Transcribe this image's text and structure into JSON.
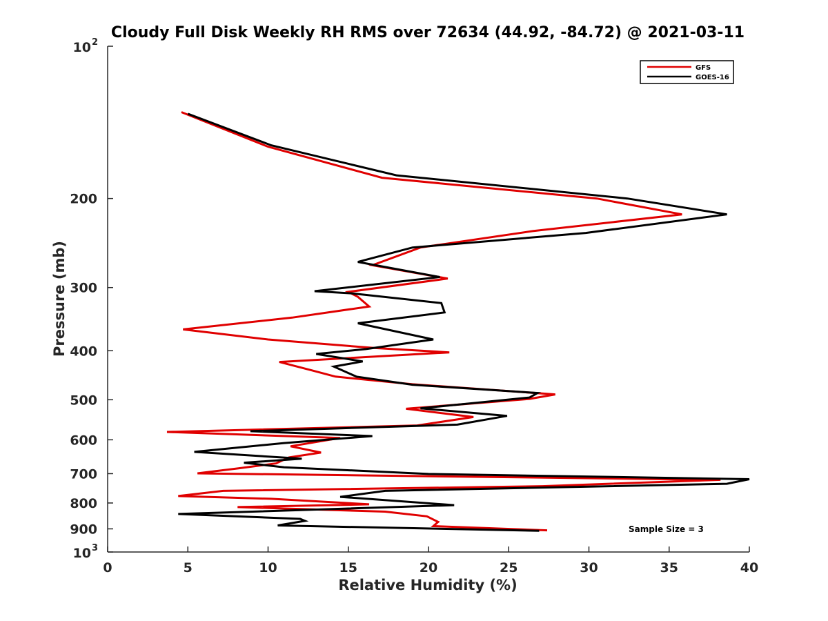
{
  "chart_data": {
    "type": "line",
    "title": "Cloudy Full Disk Weekly RH RMS over 72634 (44.92, -84.72) @ 2021-03-11",
    "xlabel": "Relative Humidity (%)",
    "ylabel": "Pressure (mb)",
    "xlim": [
      0,
      40
    ],
    "ylim": [
      100,
      1000
    ],
    "y_scale": "log",
    "y_reversed": true,
    "x_ticks": [
      "0",
      "5",
      "10",
      "15",
      "20",
      "25",
      "30",
      "35",
      "40"
    ],
    "y_ticks": [
      {
        "value": 100,
        "base": "10",
        "exp": "2",
        "label": ""
      },
      {
        "value": 200,
        "label": "200"
      },
      {
        "value": 300,
        "label": "300"
      },
      {
        "value": 400,
        "label": "400"
      },
      {
        "value": 500,
        "label": "500"
      },
      {
        "value": 600,
        "label": "600"
      },
      {
        "value": 700,
        "label": "700"
      },
      {
        "value": 800,
        "label": "800"
      },
      {
        "value": 900,
        "label": "900"
      },
      {
        "value": 1000,
        "base": "10",
        "exp": "3",
        "label": ""
      }
    ],
    "legend_position": "top-right",
    "grid": false,
    "annotation": "Sample Size = 3",
    "series": [
      {
        "name": "GFS",
        "color": "#e00000",
        "points": [
          [
            4.6,
            135
          ],
          [
            10.0,
            158
          ],
          [
            17.1,
            182
          ],
          [
            30.5,
            200
          ],
          [
            35.8,
            215
          ],
          [
            26.5,
            232
          ],
          [
            19.5,
            250
          ],
          [
            16.5,
            271
          ],
          [
            21.2,
            288
          ],
          [
            15.0,
            306
          ],
          [
            15.6,
            313
          ],
          [
            16.3,
            327
          ],
          [
            11.5,
            344
          ],
          [
            4.7,
            363
          ],
          [
            10.0,
            380
          ],
          [
            16.6,
            395
          ],
          [
            21.3,
            403
          ],
          [
            10.7,
            421
          ],
          [
            12.8,
            438
          ],
          [
            14.2,
            450
          ],
          [
            19.0,
            466
          ],
          [
            27.9,
            488
          ],
          [
            26.3,
            498
          ],
          [
            18.6,
            521
          ],
          [
            22.8,
            541
          ],
          [
            19.3,
            562
          ],
          [
            3.7,
            579
          ],
          [
            14.5,
            595
          ],
          [
            11.4,
            618
          ],
          [
            13.3,
            636
          ],
          [
            11.3,
            650
          ],
          [
            10.5,
            668
          ],
          [
            8.2,
            683
          ],
          [
            5.6,
            699
          ],
          [
            38.2,
            720
          ],
          [
            27.1,
            741
          ],
          [
            7.2,
            757
          ],
          [
            4.4,
            775
          ],
          [
            10.2,
            785
          ],
          [
            16.3,
            805
          ],
          [
            8.1,
            815
          ],
          [
            17.3,
            832
          ],
          [
            19.9,
            850
          ],
          [
            20.6,
            872
          ],
          [
            20.3,
            889
          ],
          [
            27.4,
            906
          ]
        ]
      },
      {
        "name": "GOES-16",
        "color": "#000000",
        "points": [
          [
            5.0,
            136
          ],
          [
            10.2,
            157
          ],
          [
            18.0,
            180
          ],
          [
            32.4,
            200
          ],
          [
            38.6,
            215
          ],
          [
            29.8,
            234
          ],
          [
            19.0,
            250
          ],
          [
            15.6,
            267
          ],
          [
            20.7,
            286
          ],
          [
            12.9,
            305
          ],
          [
            15.2,
            308
          ],
          [
            20.8,
            322
          ],
          [
            21.0,
            336
          ],
          [
            15.6,
            353
          ],
          [
            20.3,
            380
          ],
          [
            16.1,
            397
          ],
          [
            13.0,
            406
          ],
          [
            15.9,
            420
          ],
          [
            14.1,
            430
          ],
          [
            15.5,
            450
          ],
          [
            19.0,
            467
          ],
          [
            26.8,
            485
          ],
          [
            26.3,
            495
          ],
          [
            19.5,
            520
          ],
          [
            24.9,
            538
          ],
          [
            21.8,
            560
          ],
          [
            8.9,
            577
          ],
          [
            16.5,
            590
          ],
          [
            11.0,
            609
          ],
          [
            5.4,
            634
          ],
          [
            12.1,
            654
          ],
          [
            8.5,
            666
          ],
          [
            11.0,
            680
          ],
          [
            20.0,
            701
          ],
          [
            40.0,
            718
          ],
          [
            38.6,
            733
          ],
          [
            17.3,
            757
          ],
          [
            14.5,
            778
          ],
          [
            21.6,
            808
          ],
          [
            4.4,
            841
          ],
          [
            12.0,
            860
          ],
          [
            12.3,
            868
          ],
          [
            10.6,
            886
          ],
          [
            26.9,
            908
          ]
        ]
      }
    ]
  }
}
